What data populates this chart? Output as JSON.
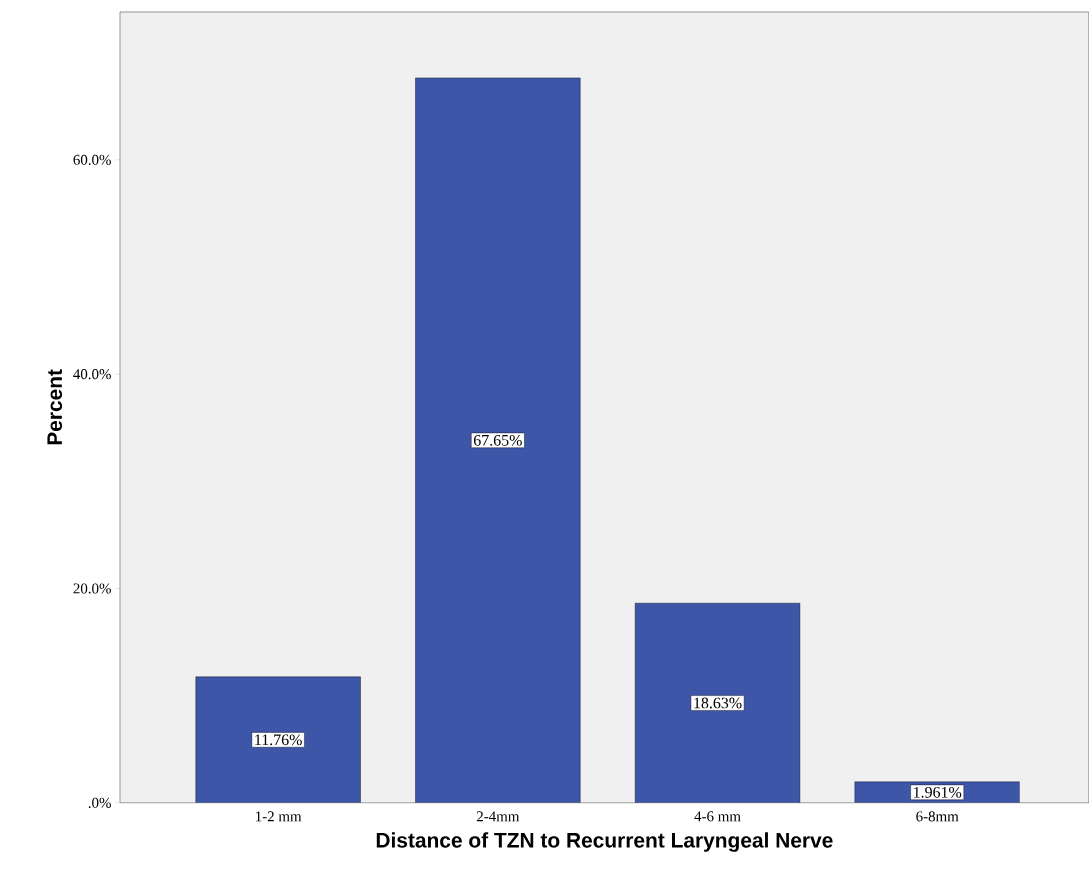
{
  "chart_data": {
    "type": "bar",
    "xlabel": "Distance of TZN to Recurrent Laryngeal Nerve",
    "ylabel": "Percent",
    "categories": [
      "1-2 mm",
      "2-4mm",
      "4-6 mm",
      "6-8mm"
    ],
    "values": [
      11.76,
      67.65,
      18.63,
      1.961
    ],
    "value_labels": [
      "11.76%",
      "67.65%",
      "18.63%",
      "1.961%"
    ],
    "color": "#3d56a8",
    "ylim": [
      0,
      73.8
    ],
    "yticks": [
      {
        "value": 0,
        "label": ".0%"
      },
      {
        "value": 20,
        "label": "20.0%"
      },
      {
        "value": 40,
        "label": "40.0%"
      },
      {
        "value": 60,
        "label": "60.0%"
      }
    ]
  }
}
